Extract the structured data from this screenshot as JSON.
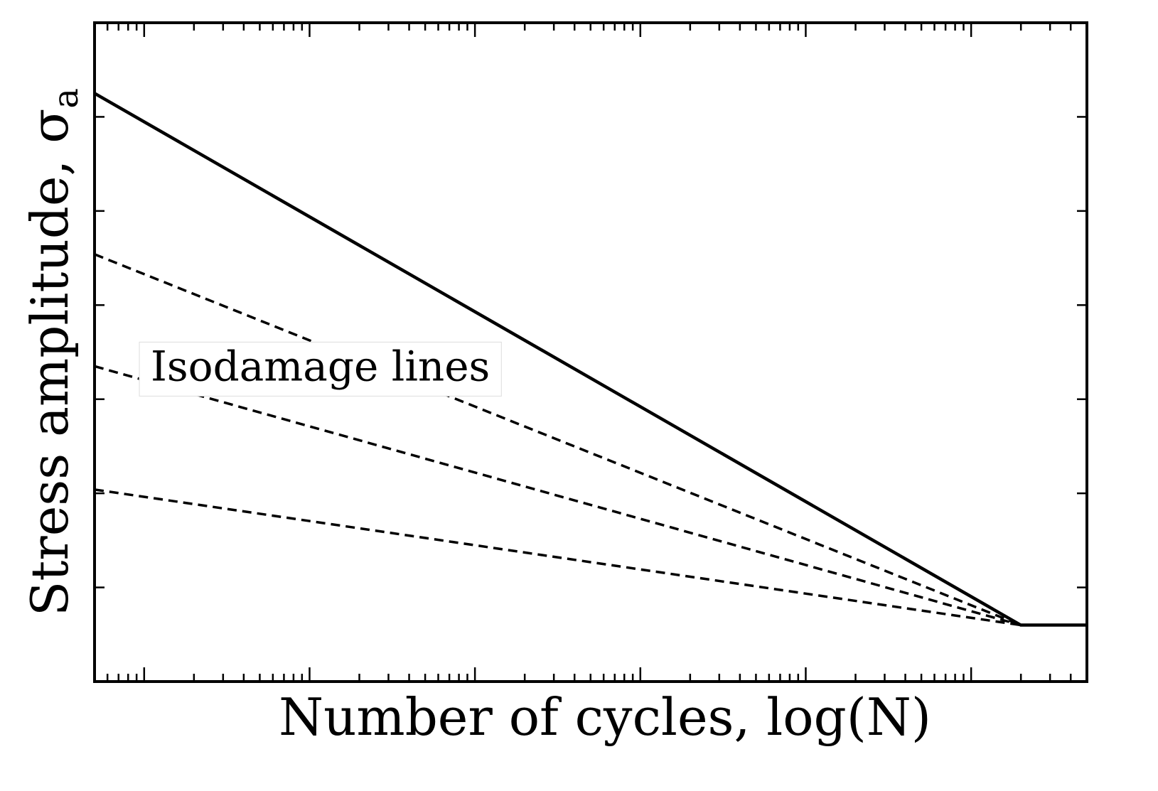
{
  "chart_data": {
    "type": "line",
    "title": "",
    "xlabel": "Number of cycles, log(N)",
    "ylabel": "Stress amplitude, σ",
    "ylabel_subscript": "a",
    "xscale": "log",
    "xlim": [
      0.7,
      6.7
    ],
    "ylim": [
      0,
      7
    ],
    "x_major_ticks": [
      1,
      2,
      3,
      4,
      5,
      6
    ],
    "y_ticks": [
      1,
      2,
      3,
      4,
      5,
      6
    ],
    "tick_labels_shown": false,
    "grid": false,
    "legend": "none",
    "series": [
      {
        "style": "solid",
        "color": "#000000",
        "x": [
          0.7,
          6.3,
          6.7
        ],
        "y": [
          6.25,
          0.6,
          0.6
        ]
      },
      {
        "style": "dashed",
        "color": "#000000",
        "x": [
          0.7,
          6.3
        ],
        "y": [
          4.54,
          0.6
        ]
      },
      {
        "style": "dashed",
        "color": "#000000",
        "x": [
          0.7,
          6.3
        ],
        "y": [
          3.35,
          0.6
        ]
      },
      {
        "style": "dashed",
        "color": "#000000",
        "x": [
          0.7,
          6.3
        ],
        "y": [
          2.04,
          0.6
        ]
      }
    ],
    "annotations": [
      {
        "text": "Isodamage lines",
        "x": 1.0,
        "y": 3.35,
        "boxed": true
      }
    ]
  }
}
